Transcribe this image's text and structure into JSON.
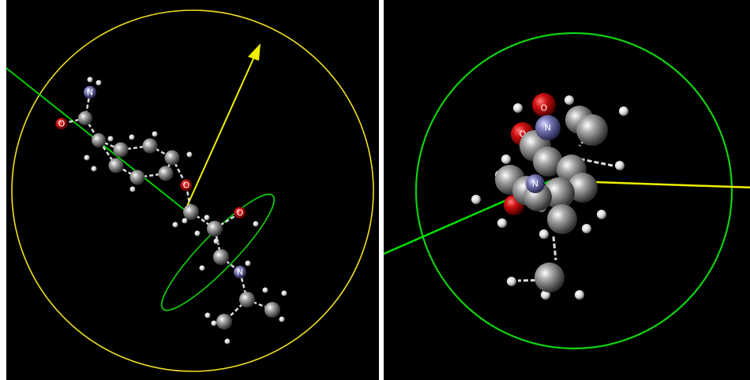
{
  "panels": [
    {
      "id": "left",
      "colors": {
        "background": "#000000",
        "circle": "#f0e020",
        "arrow": "#f0f000",
        "axis": "#00cc00",
        "ellipse": "#10c010"
      }
    },
    {
      "id": "right",
      "colors": {
        "background": "#000000",
        "circle": "#10d010",
        "axis_green": "#00dd00",
        "axis_yellow": "#f0f000"
      }
    }
  ],
  "atom_labels": {
    "oxygen": "O",
    "nitrogen": "N"
  },
  "element_colors": {
    "carbon": "#9a9a9a",
    "hydrogen": "#e8e8e8",
    "oxygen": "#cc1010",
    "nitrogen": "#7a7ab8"
  }
}
